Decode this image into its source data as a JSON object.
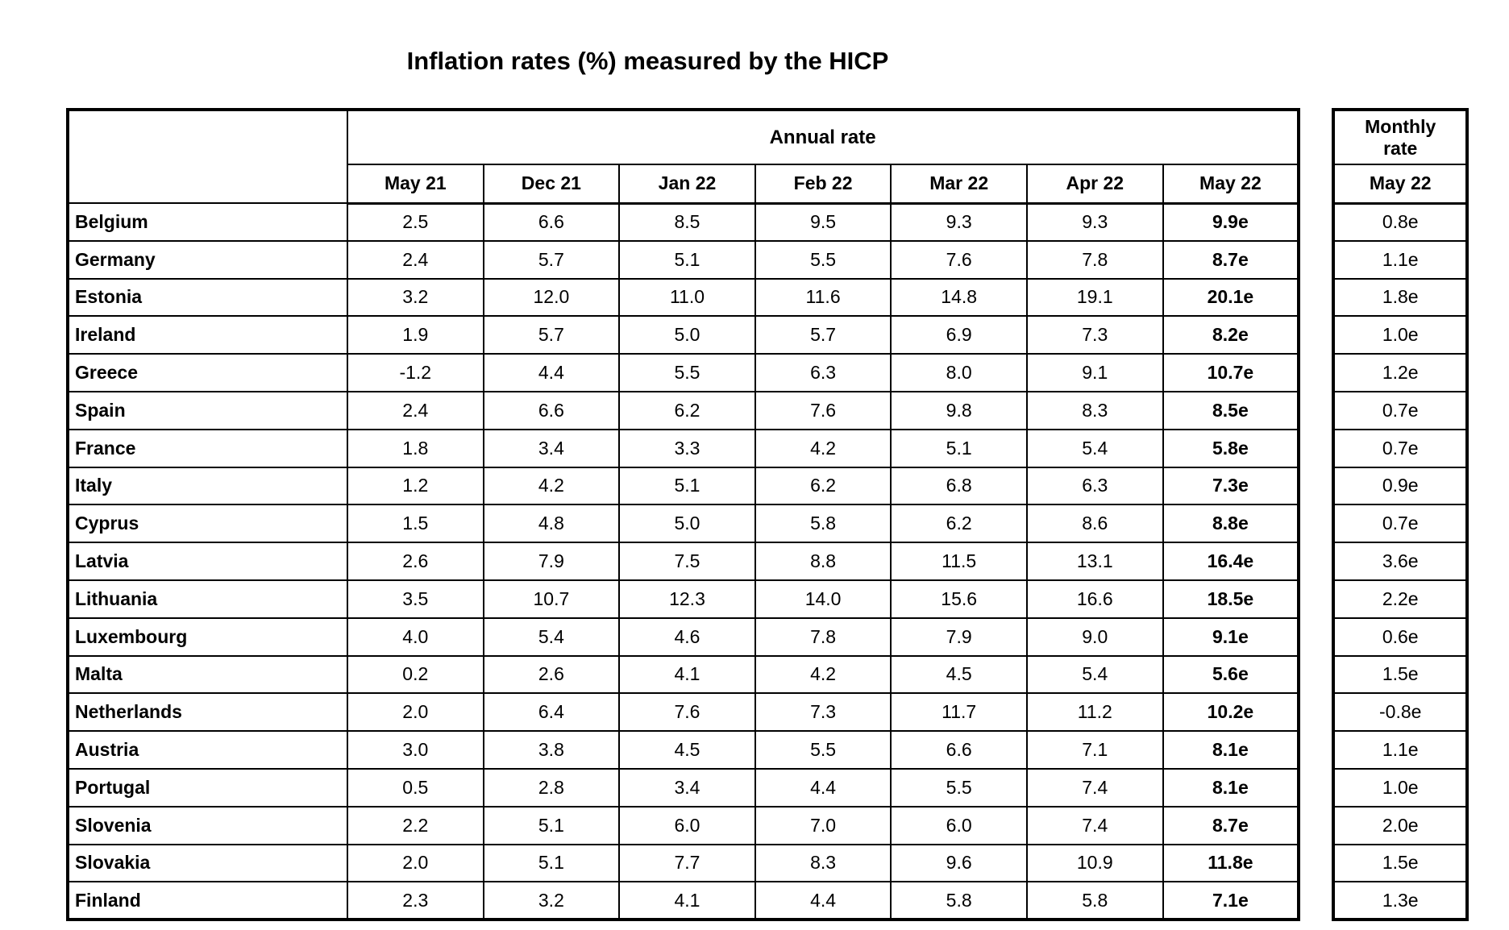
{
  "title": "Inflation rates (%) measured by the HICP",
  "table": {
    "annual_header": "Annual rate",
    "monthly_header_line1": "Monthly",
    "monthly_header_line2": "rate",
    "annual_months": [
      "May 21",
      "Dec 21",
      "Jan 22",
      "Feb 22",
      "Mar 22",
      "Apr 22",
      "May 22"
    ],
    "monthly_month": "May 22",
    "rows": [
      {
        "country": "Belgium",
        "values": [
          "2.5",
          "6.6",
          "8.5",
          "9.5",
          "9.3",
          "9.3",
          "9.9e"
        ],
        "monthly": "0.8e"
      },
      {
        "country": "Germany",
        "values": [
          "2.4",
          "5.7",
          "5.1",
          "5.5",
          "7.6",
          "7.8",
          "8.7e"
        ],
        "monthly": "1.1e"
      },
      {
        "country": "Estonia",
        "values": [
          "3.2",
          "12.0",
          "11.0",
          "11.6",
          "14.8",
          "19.1",
          "20.1e"
        ],
        "monthly": "1.8e"
      },
      {
        "country": "Ireland",
        "values": [
          "1.9",
          "5.7",
          "5.0",
          "5.7",
          "6.9",
          "7.3",
          "8.2e"
        ],
        "monthly": "1.0e"
      },
      {
        "country": "Greece",
        "values": [
          "-1.2",
          "4.4",
          "5.5",
          "6.3",
          "8.0",
          "9.1",
          "10.7e"
        ],
        "monthly": "1.2e"
      },
      {
        "country": "Spain",
        "values": [
          "2.4",
          "6.6",
          "6.2",
          "7.6",
          "9.8",
          "8.3",
          "8.5e"
        ],
        "monthly": "0.7e"
      },
      {
        "country": "France",
        "values": [
          "1.8",
          "3.4",
          "3.3",
          "4.2",
          "5.1",
          "5.4",
          "5.8e"
        ],
        "monthly": "0.7e"
      },
      {
        "country": "Italy",
        "values": [
          "1.2",
          "4.2",
          "5.1",
          "6.2",
          "6.8",
          "6.3",
          "7.3e"
        ],
        "monthly": "0.9e"
      },
      {
        "country": "Cyprus",
        "values": [
          "1.5",
          "4.8",
          "5.0",
          "5.8",
          "6.2",
          "8.6",
          "8.8e"
        ],
        "monthly": "0.7e"
      },
      {
        "country": "Latvia",
        "values": [
          "2.6",
          "7.9",
          "7.5",
          "8.8",
          "11.5",
          "13.1",
          "16.4e"
        ],
        "monthly": "3.6e"
      },
      {
        "country": "Lithuania",
        "values": [
          "3.5",
          "10.7",
          "12.3",
          "14.0",
          "15.6",
          "16.6",
          "18.5e"
        ],
        "monthly": "2.2e"
      },
      {
        "country": "Luxembourg",
        "values": [
          "4.0",
          "5.4",
          "4.6",
          "7.8",
          "7.9",
          "9.0",
          "9.1e"
        ],
        "monthly": "0.6e"
      },
      {
        "country": "Malta",
        "values": [
          "0.2",
          "2.6",
          "4.1",
          "4.2",
          "4.5",
          "5.4",
          "5.6e"
        ],
        "monthly": "1.5e"
      },
      {
        "country": "Netherlands",
        "values": [
          "2.0",
          "6.4",
          "7.6",
          "7.3",
          "11.7",
          "11.2",
          "10.2e"
        ],
        "monthly": "-0.8e"
      },
      {
        "country": "Austria",
        "values": [
          "3.0",
          "3.8",
          "4.5",
          "5.5",
          "6.6",
          "7.1",
          "8.1e"
        ],
        "monthly": "1.1e"
      },
      {
        "country": "Portugal",
        "values": [
          "0.5",
          "2.8",
          "3.4",
          "4.4",
          "5.5",
          "7.4",
          "8.1e"
        ],
        "monthly": "1.0e"
      },
      {
        "country": "Slovenia",
        "values": [
          "2.2",
          "5.1",
          "6.0",
          "7.0",
          "6.0",
          "7.4",
          "8.7e"
        ],
        "monthly": "2.0e"
      },
      {
        "country": "Slovakia",
        "values": [
          "2.0",
          "5.1",
          "7.7",
          "8.3",
          "9.6",
          "10.9",
          "11.8e"
        ],
        "monthly": "1.5e"
      },
      {
        "country": "Finland",
        "values": [
          "2.3",
          "3.2",
          "4.1",
          "4.4",
          "5.8",
          "5.8",
          "7.1e"
        ],
        "monthly": "1.3e"
      }
    ]
  }
}
